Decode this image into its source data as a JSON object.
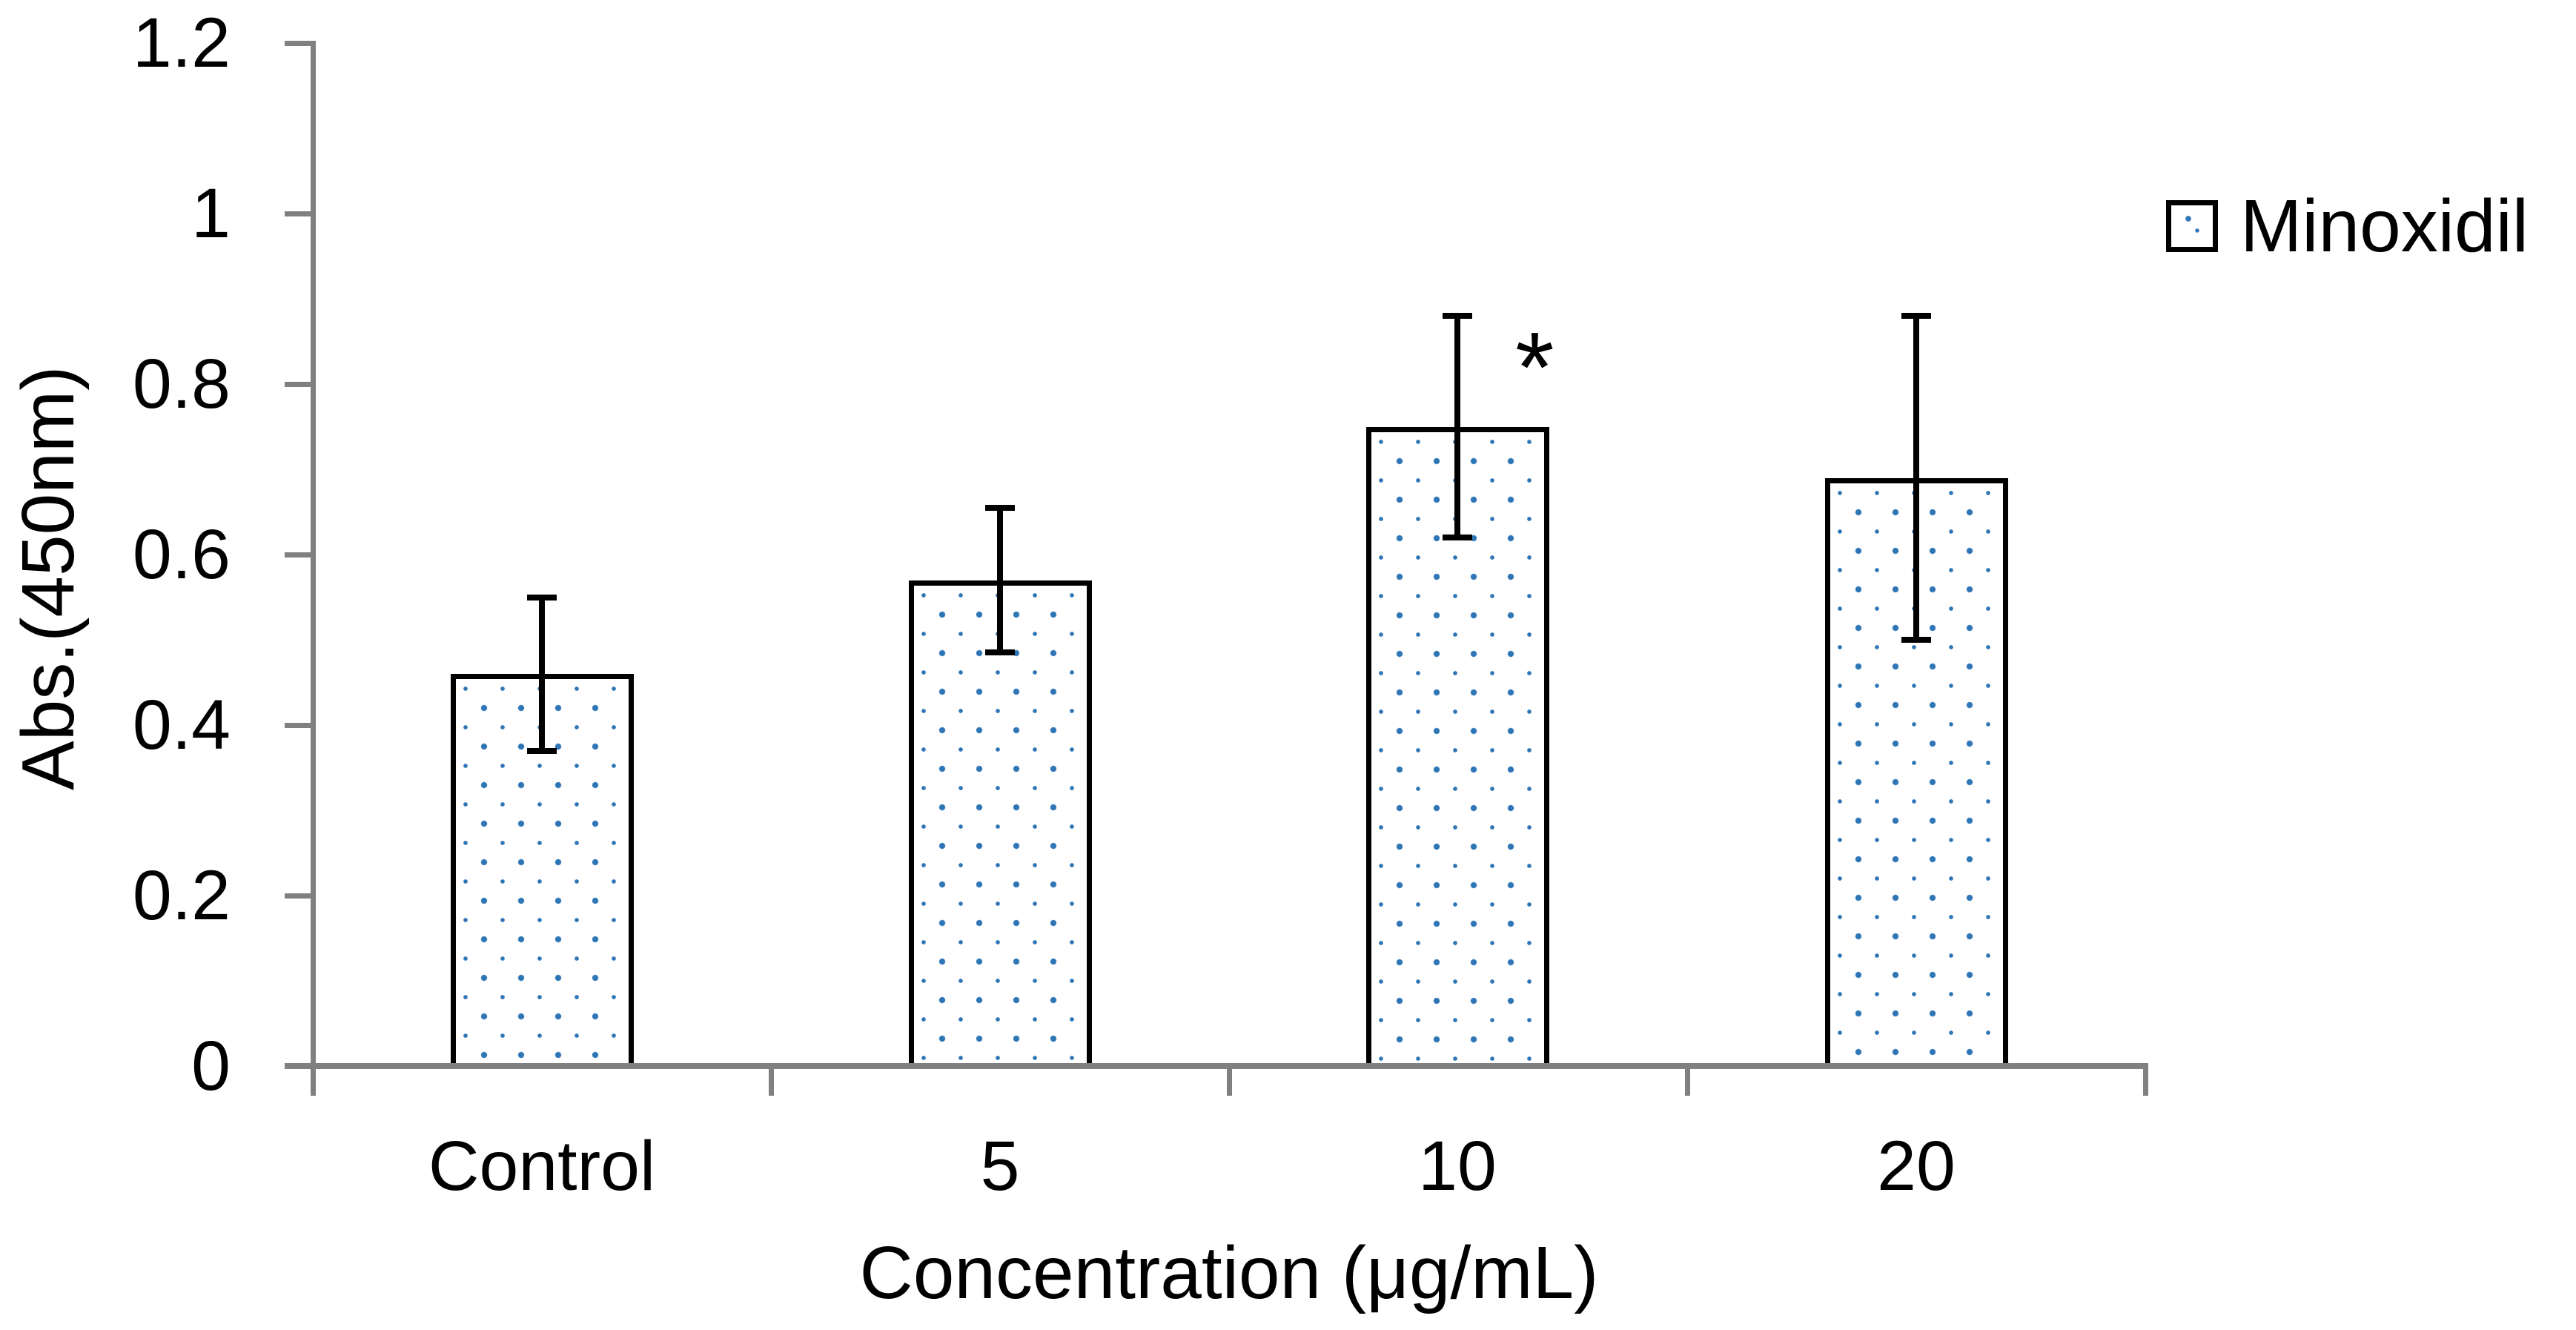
{
  "chart_data": {
    "type": "bar",
    "title": "",
    "xlabel": "Concentration (μg/mL)",
    "ylabel": "Abs.(450nm)",
    "categories": [
      "Control",
      "5",
      "10",
      "20"
    ],
    "series": [
      {
        "name": "Minoxidil",
        "values": [
          0.46,
          0.57,
          0.75,
          0.69
        ],
        "errors": [
          0.09,
          0.085,
          0.13,
          0.19
        ]
      }
    ],
    "ylim": [
      0,
      1.2
    ],
    "y_ticks": [
      0,
      0.2,
      0.4,
      0.6,
      0.8,
      1,
      1.2
    ],
    "y_tick_labels": [
      "0",
      "0.2",
      "0.4",
      "0.6",
      "0.8",
      "1",
      "1.2"
    ],
    "grid": "off",
    "legend_position": "right-top",
    "annotations": [
      {
        "text": "*",
        "category_index": 2,
        "meaning": "significance-marker"
      }
    ],
    "colors": {
      "bar_fill": "#ffffff",
      "bar_pattern_dot": "#2E75B6",
      "bar_border": "#000000",
      "error_bar": "#000000",
      "axis": "#808080",
      "text": "#000000"
    }
  }
}
